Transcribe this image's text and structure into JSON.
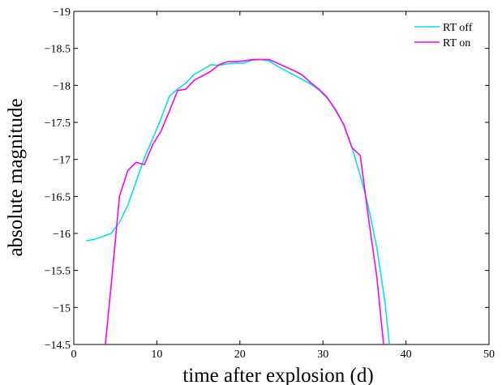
{
  "chart_data": {
    "type": "line",
    "title": "",
    "xlabel": "time after explosion (d)",
    "ylabel": "absolute magnitude",
    "xlim": [
      0,
      50
    ],
    "ylim": [
      -19,
      -14.5
    ],
    "y_reversed": true,
    "xticks": [
      0,
      10,
      20,
      30,
      40,
      50
    ],
    "xtick_labels": [
      "0",
      "10",
      "20",
      "30",
      "40",
      "50"
    ],
    "yticks": [
      -19,
      -18.5,
      -18,
      -17.5,
      -17,
      -16.5,
      -16,
      -15.5,
      -15,
      -14.5
    ],
    "ytick_labels": [
      "−19",
      "−18.5",
      "−18",
      "−17.5",
      "−17",
      "−16.5",
      "−16",
      "−15.5",
      "−15",
      "−14.5"
    ],
    "grid": false,
    "legend_position": "top-right",
    "series": [
      {
        "name": "RT off",
        "color": "#00e6e6",
        "points": [
          [
            1.5,
            -15.9
          ],
          [
            2.5,
            -15.92
          ],
          [
            3.5,
            -15.96
          ],
          [
            4.5,
            -16.0
          ],
          [
            5.5,
            -16.15
          ],
          [
            6.5,
            -16.38
          ],
          [
            7.5,
            -16.7
          ],
          [
            8.5,
            -17.02
          ],
          [
            9.5,
            -17.28
          ],
          [
            10.5,
            -17.55
          ],
          [
            11.5,
            -17.85
          ],
          [
            12.5,
            -17.95
          ],
          [
            13.5,
            -18.03
          ],
          [
            14.5,
            -18.15
          ],
          [
            15.5,
            -18.21
          ],
          [
            16.5,
            -18.28
          ],
          [
            17.5,
            -18.27
          ],
          [
            18.5,
            -18.29
          ],
          [
            19.5,
            -18.3
          ],
          [
            20.5,
            -18.3
          ],
          [
            21.5,
            -18.34
          ],
          [
            22.5,
            -18.35
          ],
          [
            23.5,
            -18.33
          ],
          [
            24.5,
            -18.26
          ],
          [
            25.5,
            -18.2
          ],
          [
            26.5,
            -18.14
          ],
          [
            27.5,
            -18.08
          ],
          [
            28.5,
            -18.02
          ],
          [
            29.5,
            -17.94
          ],
          [
            30.5,
            -17.83
          ],
          [
            31.5,
            -17.68
          ],
          [
            32.5,
            -17.47
          ],
          [
            33.5,
            -17.16
          ],
          [
            34.5,
            -16.78
          ],
          [
            35.5,
            -16.35
          ],
          [
            36.5,
            -15.8
          ],
          [
            37.5,
            -15.05
          ],
          [
            38.0,
            -14.5
          ]
        ]
      },
      {
        "name": "RT on",
        "color": "#ff00ff",
        "points": [
          [
            3.8,
            -14.5
          ],
          [
            4.5,
            -15.3
          ],
          [
            5.5,
            -16.5
          ],
          [
            6.5,
            -16.85
          ],
          [
            7.5,
            -16.96
          ],
          [
            8.5,
            -16.93
          ],
          [
            9.5,
            -17.2
          ],
          [
            10.5,
            -17.38
          ],
          [
            11.5,
            -17.65
          ],
          [
            12.5,
            -17.93
          ],
          [
            13.5,
            -17.95
          ],
          [
            14.5,
            -18.07
          ],
          [
            15.5,
            -18.13
          ],
          [
            16.5,
            -18.19
          ],
          [
            17.5,
            -18.28
          ],
          [
            18.5,
            -18.32
          ],
          [
            19.5,
            -18.32
          ],
          [
            20.5,
            -18.33
          ],
          [
            21.5,
            -18.35
          ],
          [
            22.5,
            -18.35
          ],
          [
            23.5,
            -18.35
          ],
          [
            24.5,
            -18.3
          ],
          [
            25.5,
            -18.25
          ],
          [
            26.5,
            -18.2
          ],
          [
            27.5,
            -18.14
          ],
          [
            28.5,
            -18.04
          ],
          [
            29.5,
            -17.95
          ],
          [
            30.5,
            -17.84
          ],
          [
            31.5,
            -17.67
          ],
          [
            32.5,
            -17.47
          ],
          [
            33.5,
            -17.16
          ],
          [
            34.5,
            -17.05
          ],
          [
            35.5,
            -16.2
          ],
          [
            36.5,
            -15.4
          ],
          [
            37.3,
            -14.5
          ]
        ]
      }
    ]
  }
}
